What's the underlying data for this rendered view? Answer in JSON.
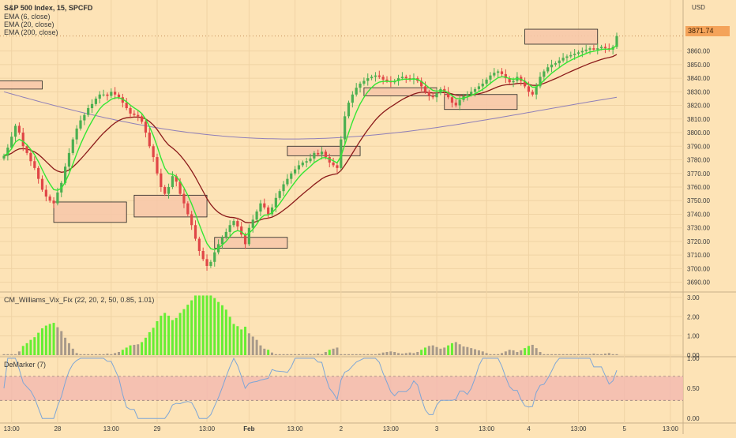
{
  "header": {
    "title": "S&P 500 Index, 15, SPCFD",
    "indicators": [
      "EMA (6, close)",
      "EMA (20, close)",
      "EMA (200, close)"
    ],
    "currency": "USD",
    "last_price": "3871.74"
  },
  "colors": {
    "background": "#fde3b6",
    "bull_candle": "#4caf50",
    "bear_candle": "#e04646",
    "ema6": "#33e633",
    "ema20": "#8b1a1a",
    "ema200": "#8f7fb8",
    "zone_fill": "#f7c7a9",
    "vix_green": "#66ee33",
    "vix_gray": "#a89a8a",
    "demarker_line": "#7ea6d6",
    "demarker_band": "#f2b8b0"
  },
  "chart_data": [
    {
      "type": "candlestick",
      "title": "S&P 500 Index, 15, SPCFD",
      "ylim": [
        3684,
        3894
      ],
      "yticks": [
        3690,
        3700,
        3710,
        3720,
        3730,
        3740,
        3750,
        3760,
        3770,
        3780,
        3790,
        3800,
        3810,
        3820,
        3830,
        3840,
        3850,
        3860
      ],
      "x_ticks": [
        {
          "i": 2,
          "label": "13:00"
        },
        {
          "i": 14,
          "label": "28"
        },
        {
          "i": 28,
          "label": "13:00"
        },
        {
          "i": 40,
          "label": "29"
        },
        {
          "i": 53,
          "label": "13:00"
        },
        {
          "i": 64,
          "label": "Feb"
        },
        {
          "i": 76,
          "label": "13:00"
        },
        {
          "i": 88,
          "label": "2"
        },
        {
          "i": 101,
          "label": "13:00"
        },
        {
          "i": 113,
          "label": "3"
        },
        {
          "i": 126,
          "label": "13:00"
        },
        {
          "i": 137,
          "label": "4"
        },
        {
          "i": 150,
          "label": "13:00"
        },
        {
          "i": 162,
          "label": "5"
        },
        {
          "i": 174,
          "label": "13:00"
        }
      ],
      "closes": [
        3783,
        3789,
        3797,
        3805,
        3800,
        3790,
        3785,
        3779,
        3774,
        3766,
        3758,
        3753,
        3750,
        3748,
        3756,
        3763,
        3775,
        3785,
        3795,
        3803,
        3809,
        3813,
        3818,
        3821,
        3825,
        3828,
        3828,
        3827,
        3830,
        3828,
        3826,
        3822,
        3818,
        3814,
        3813,
        3812,
        3808,
        3800,
        3790,
        3782,
        3770,
        3760,
        3755,
        3760,
        3768,
        3764,
        3755,
        3748,
        3740,
        3732,
        3722,
        3713,
        3707,
        3702,
        3705,
        3712,
        3718,
        3723,
        3727,
        3732,
        3735,
        3731,
        3725,
        3718,
        3730,
        3736,
        3742,
        3748,
        3745,
        3740,
        3745,
        3752,
        3757,
        3762,
        3766,
        3770,
        3773,
        3776,
        3778,
        3779,
        3781,
        3785,
        3784,
        3786,
        3782,
        3778,
        3776,
        3774,
        3795,
        3812,
        3822,
        3828,
        3833,
        3836,
        3838,
        3840,
        3841,
        3842,
        3841,
        3839,
        3838,
        3837,
        3838,
        3840,
        3841,
        3840,
        3839,
        3840,
        3838,
        3834,
        3830,
        3827,
        3826,
        3829,
        3832,
        3830,
        3826,
        3822,
        3820,
        3824,
        3827,
        3828,
        3830,
        3832,
        3834,
        3836,
        3839,
        3842,
        3844,
        3845,
        3843,
        3840,
        3837,
        3838,
        3841,
        3838,
        3834,
        3830,
        3828,
        3834,
        3841,
        3845,
        3848,
        3850,
        3851,
        3853,
        3855,
        3856,
        3857,
        3858,
        3859,
        3860,
        3861,
        3862,
        3861,
        3862,
        3863,
        3862,
        3861,
        3863,
        3871
      ],
      "series": [
        {
          "name": "EMA (6, close)"
        },
        {
          "name": "EMA (20, close)"
        },
        {
          "name": "EMA (200, close)",
          "start": 3830,
          "end": 3822
        }
      ],
      "zones": [
        {
          "i0": -6,
          "i1": 10,
          "low": 3832,
          "high": 3838
        },
        {
          "i0": 13,
          "i1": 32,
          "low": 3734,
          "high": 3749
        },
        {
          "i0": 34,
          "i1": 53,
          "low": 3738,
          "high": 3754
        },
        {
          "i0": 55,
          "i1": 74,
          "low": 3715,
          "high": 3723
        },
        {
          "i0": 74,
          "i1": 93,
          "low": 3783,
          "high": 3790
        },
        {
          "i0": 94,
          "i1": 113,
          "low": 3827,
          "high": 3833
        },
        {
          "i0": 115,
          "i1": 134,
          "low": 3817,
          "high": 3828
        },
        {
          "i0": 136,
          "i1": 155,
          "low": 3865,
          "high": 3876
        }
      ]
    },
    {
      "type": "bar",
      "title": "CM_Williams_Vix_Fix (22, 20, 2, 50, 0.85, 1.01)",
      "ylim": [
        0,
        3.2
      ],
      "yticks": [
        0,
        1,
        2,
        3
      ],
      "ytick_labels": [
        "0.00",
        "1.00",
        "2.00",
        "3.00"
      ]
    },
    {
      "type": "line",
      "title": "DeMarker (7)",
      "ylim": [
        -0.05,
        1.0
      ],
      "yticks": [
        0,
        0.5,
        1
      ],
      "ytick_labels": [
        "0.00",
        "0.50",
        "1.00"
      ],
      "band": [
        0.3,
        0.7
      ]
    }
  ]
}
